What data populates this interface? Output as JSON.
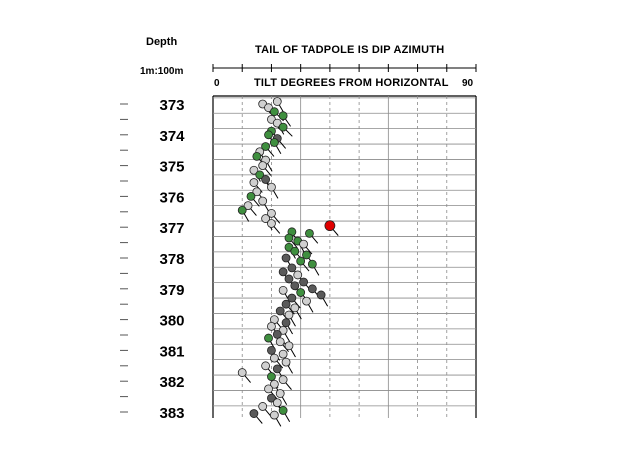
{
  "header": {
    "depth_title": "Depth",
    "scale": "1m:100m",
    "title": "TAIL OF TADPOLE IS DIP AZIMUTH",
    "x_axis_label": "TILT DEGREES FROM HORIZONTAL",
    "x_min_label": "0",
    "x_max_label": "90"
  },
  "colors": {
    "green": "#3f8f3f",
    "light_gray": "#d0d0d0",
    "dark_gray": "#5a5a5a",
    "red": "#e00000",
    "grid": "#8a8a8a"
  },
  "chart_data": {
    "type": "scatter",
    "title": "TAIL OF TADPOLE IS DIP AZIMUTH",
    "xlabel": "TILT DEGREES FROM HORIZONTAL",
    "ylabel": "Depth",
    "xlim": [
      0,
      90
    ],
    "ylim": [
      372.8,
      383.2
    ],
    "depth_ticks": [
      373,
      374,
      375,
      376,
      377,
      378,
      379,
      380,
      381,
      382,
      383
    ],
    "grid": true,
    "points": [
      {
        "depth": 372.92,
        "dip": 22,
        "azimuth": 150,
        "color": "light_gray"
      },
      {
        "depth": 373.0,
        "dip": 17,
        "azimuth": 140,
        "color": "light_gray"
      },
      {
        "depth": 373.12,
        "dip": 19,
        "azimuth": 150,
        "color": "light_gray"
      },
      {
        "depth": 373.25,
        "dip": 21,
        "azimuth": 135,
        "color": "green"
      },
      {
        "depth": 373.38,
        "dip": 24,
        "azimuth": 145,
        "color": "green"
      },
      {
        "depth": 373.5,
        "dip": 20,
        "azimuth": 140,
        "color": "light_gray"
      },
      {
        "depth": 373.62,
        "dip": 22,
        "azimuth": 150,
        "color": "light_gray"
      },
      {
        "depth": 373.75,
        "dip": 24,
        "azimuth": 135,
        "color": "green"
      },
      {
        "depth": 373.88,
        "dip": 20,
        "azimuth": 140,
        "color": "green"
      },
      {
        "depth": 374.0,
        "dip": 19,
        "azimuth": 150,
        "color": "green"
      },
      {
        "depth": 374.12,
        "dip": 22,
        "azimuth": 140,
        "color": "dark_gray"
      },
      {
        "depth": 374.25,
        "dip": 21,
        "azimuth": 150,
        "color": "green"
      },
      {
        "depth": 374.38,
        "dip": 18,
        "azimuth": 140,
        "color": "green"
      },
      {
        "depth": 374.55,
        "dip": 16,
        "azimuth": 150,
        "color": "light_gray"
      },
      {
        "depth": 374.7,
        "dip": 15,
        "azimuth": 140,
        "color": "green"
      },
      {
        "depth": 374.82,
        "dip": 18,
        "azimuth": 150,
        "color": "light_gray"
      },
      {
        "depth": 375.0,
        "dip": 17,
        "azimuth": 140,
        "color": "light_gray"
      },
      {
        "depth": 375.15,
        "dip": 14,
        "azimuth": 150,
        "color": "light_gray"
      },
      {
        "depth": 375.3,
        "dip": 16,
        "azimuth": 140,
        "color": "green"
      },
      {
        "depth": 375.45,
        "dip": 18,
        "azimuth": 150,
        "color": "dark_gray"
      },
      {
        "depth": 375.55,
        "dip": 14,
        "azimuth": 140,
        "color": "light_gray"
      },
      {
        "depth": 375.7,
        "dip": 20,
        "azimuth": 150,
        "color": "light_gray"
      },
      {
        "depth": 375.85,
        "dip": 15,
        "azimuth": 140,
        "color": "light_gray"
      },
      {
        "depth": 376.0,
        "dip": 13,
        "azimuth": 140,
        "color": "green"
      },
      {
        "depth": 376.15,
        "dip": 17,
        "azimuth": 150,
        "color": "light_gray"
      },
      {
        "depth": 376.3,
        "dip": 12,
        "azimuth": 140,
        "color": "light_gray"
      },
      {
        "depth": 376.45,
        "dip": 10,
        "azimuth": 150,
        "color": "green"
      },
      {
        "depth": 376.55,
        "dip": 20,
        "azimuth": 140,
        "color": "light_gray"
      },
      {
        "depth": 376.72,
        "dip": 18,
        "azimuth": 150,
        "color": "light_gray"
      },
      {
        "depth": 376.88,
        "dip": 20,
        "azimuth": 140,
        "color": "light_gray"
      },
      {
        "depth": 376.95,
        "dip": 40,
        "azimuth": 140,
        "color": "red"
      },
      {
        "depth": 377.15,
        "dip": 27,
        "azimuth": 150,
        "color": "green"
      },
      {
        "depth": 377.2,
        "dip": 33,
        "azimuth": 140,
        "color": "green"
      },
      {
        "depth": 377.35,
        "dip": 26,
        "azimuth": 140,
        "color": "green"
      },
      {
        "depth": 377.45,
        "dip": 29,
        "azimuth": 150,
        "color": "green"
      },
      {
        "depth": 377.55,
        "dip": 31,
        "azimuth": 140,
        "color": "light_gray"
      },
      {
        "depth": 377.65,
        "dip": 26,
        "azimuth": 150,
        "color": "green"
      },
      {
        "depth": 377.78,
        "dip": 28,
        "azimuth": 140,
        "color": "green"
      },
      {
        "depth": 377.9,
        "dip": 32,
        "azimuth": 145,
        "color": "green"
      },
      {
        "depth": 378.0,
        "dip": 25,
        "azimuth": 150,
        "color": "dark_gray"
      },
      {
        "depth": 378.1,
        "dip": 30,
        "azimuth": 140,
        "color": "green"
      },
      {
        "depth": 378.2,
        "dip": 34,
        "azimuth": 150,
        "color": "green"
      },
      {
        "depth": 378.32,
        "dip": 27,
        "azimuth": 140,
        "color": "dark_gray"
      },
      {
        "depth": 378.45,
        "dip": 24,
        "azimuth": 150,
        "color": "dark_gray"
      },
      {
        "depth": 378.55,
        "dip": 29,
        "azimuth": 140,
        "color": "light_gray"
      },
      {
        "depth": 378.68,
        "dip": 26,
        "azimuth": 150,
        "color": "dark_gray"
      },
      {
        "depth": 378.78,
        "dip": 31,
        "azimuth": 140,
        "color": "dark_gray"
      },
      {
        "depth": 378.9,
        "dip": 28,
        "azimuth": 150,
        "color": "dark_gray"
      },
      {
        "depth": 379.0,
        "dip": 34,
        "azimuth": 140,
        "color": "dark_gray"
      },
      {
        "depth": 379.05,
        "dip": 24,
        "azimuth": 150,
        "color": "light_gray"
      },
      {
        "depth": 379.12,
        "dip": 30,
        "azimuth": 140,
        "color": "green"
      },
      {
        "depth": 379.2,
        "dip": 37,
        "azimuth": 150,
        "color": "dark_gray"
      },
      {
        "depth": 379.3,
        "dip": 27,
        "azimuth": 140,
        "color": "dark_gray"
      },
      {
        "depth": 379.4,
        "dip": 32,
        "azimuth": 150,
        "color": "light_gray"
      },
      {
        "depth": 379.5,
        "dip": 25,
        "azimuth": 140,
        "color": "dark_gray"
      },
      {
        "depth": 379.62,
        "dip": 28,
        "azimuth": 150,
        "color": "light_gray"
      },
      {
        "depth": 379.72,
        "dip": 23,
        "azimuth": 140,
        "color": "dark_gray"
      },
      {
        "depth": 379.85,
        "dip": 26,
        "azimuth": 150,
        "color": "light_gray"
      },
      {
        "depth": 380.0,
        "dip": 21,
        "azimuth": 140,
        "color": "light_gray"
      },
      {
        "depth": 380.1,
        "dip": 25,
        "azimuth": 150,
        "color": "dark_gray"
      },
      {
        "depth": 380.22,
        "dip": 20,
        "azimuth": 140,
        "color": "light_gray"
      },
      {
        "depth": 380.35,
        "dip": 24,
        "azimuth": 150,
        "color": "light_gray"
      },
      {
        "depth": 380.48,
        "dip": 22,
        "azimuth": 140,
        "color": "dark_gray"
      },
      {
        "depth": 380.6,
        "dip": 19,
        "azimuth": 150,
        "color": "green"
      },
      {
        "depth": 380.72,
        "dip": 23,
        "azimuth": 140,
        "color": "light_gray"
      },
      {
        "depth": 380.85,
        "dip": 26,
        "azimuth": 150,
        "color": "light_gray"
      },
      {
        "depth": 381.0,
        "dip": 20,
        "azimuth": 140,
        "color": "dark_gray"
      },
      {
        "depth": 381.12,
        "dip": 24,
        "azimuth": 150,
        "color": "light_gray"
      },
      {
        "depth": 381.25,
        "dip": 21,
        "azimuth": 140,
        "color": "light_gray"
      },
      {
        "depth": 381.38,
        "dip": 25,
        "azimuth": 150,
        "color": "light_gray"
      },
      {
        "depth": 381.5,
        "dip": 18,
        "azimuth": 140,
        "color": "light_gray"
      },
      {
        "depth": 381.6,
        "dip": 22,
        "azimuth": 150,
        "color": "dark_gray"
      },
      {
        "depth": 381.72,
        "dip": 10,
        "azimuth": 140,
        "color": "light_gray"
      },
      {
        "depth": 381.85,
        "dip": 20,
        "azimuth": 150,
        "color": "green"
      },
      {
        "depth": 381.95,
        "dip": 24,
        "azimuth": 140,
        "color": "light_gray"
      },
      {
        "depth": 382.1,
        "dip": 21,
        "azimuth": 150,
        "color": "light_gray"
      },
      {
        "depth": 382.25,
        "dip": 19,
        "azimuth": 140,
        "color": "light_gray"
      },
      {
        "depth": 382.4,
        "dip": 23,
        "azimuth": 150,
        "color": "light_gray"
      },
      {
        "depth": 382.55,
        "dip": 20,
        "azimuth": 140,
        "color": "dark_gray"
      },
      {
        "depth": 382.7,
        "dip": 22,
        "azimuth": 150,
        "color": "light_gray"
      },
      {
        "depth": 382.82,
        "dip": 17,
        "azimuth": 140,
        "color": "light_gray"
      },
      {
        "depth": 382.95,
        "dip": 24,
        "azimuth": 150,
        "color": "green"
      },
      {
        "depth": 383.05,
        "dip": 14,
        "azimuth": 140,
        "color": "dark_gray"
      },
      {
        "depth": 383.1,
        "dip": 21,
        "azimuth": 150,
        "color": "light_gray"
      }
    ]
  }
}
